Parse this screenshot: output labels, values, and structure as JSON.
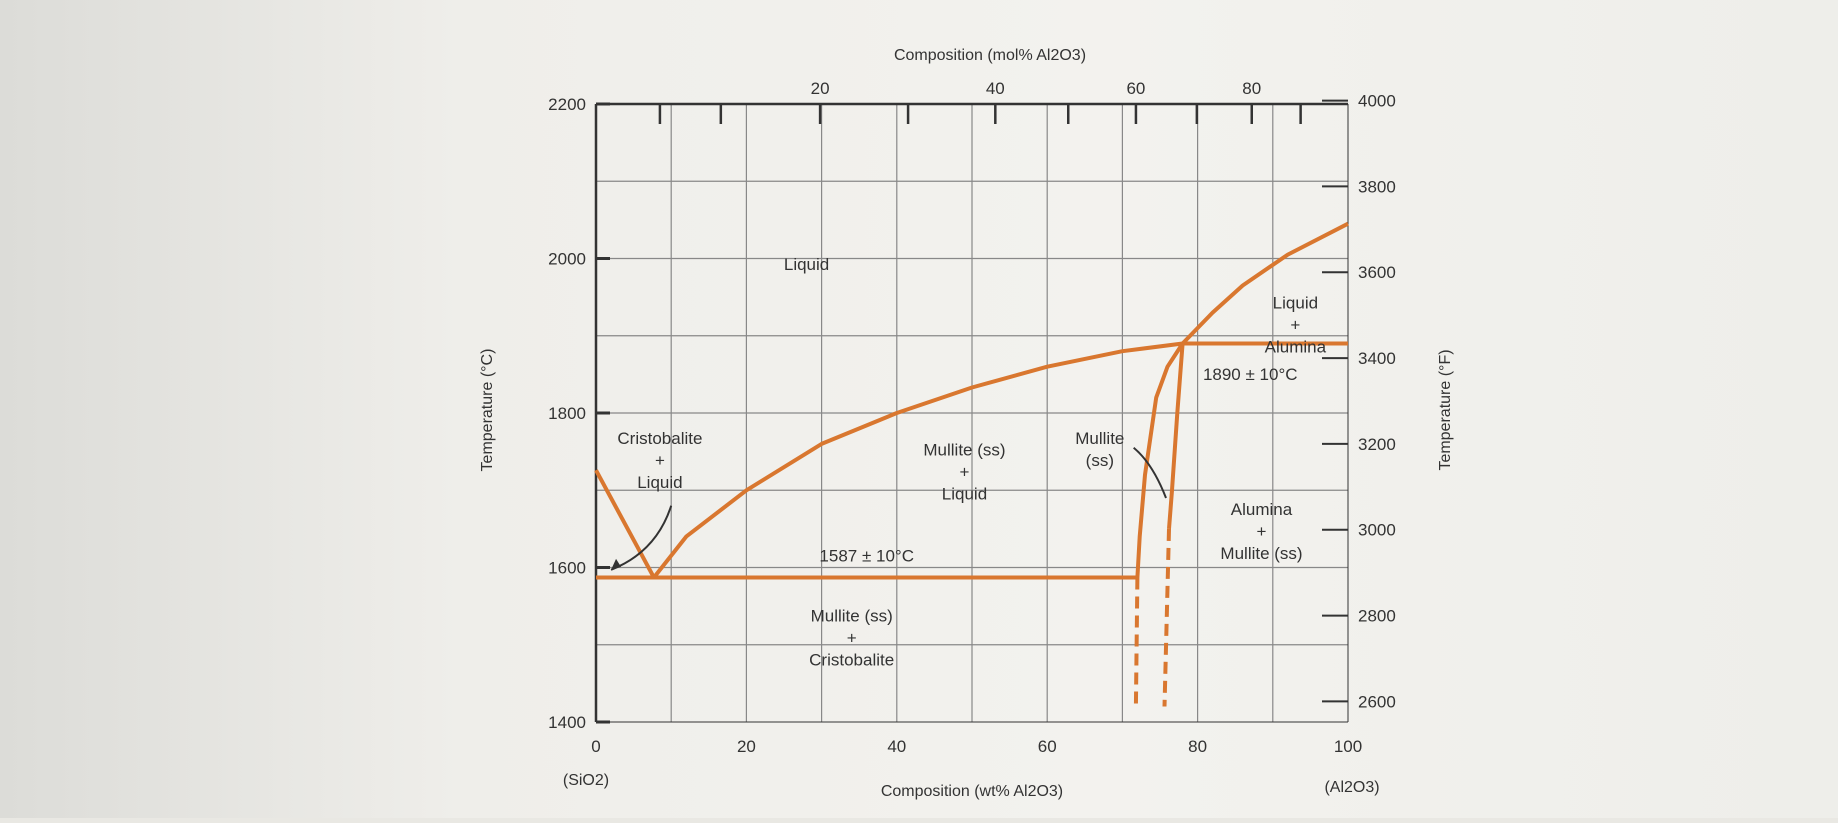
{
  "chart_data": {
    "type": "line",
    "title": "",
    "xlabel": "Composition (wt% Al2O3)",
    "x2label": "Composition (mol% Al2O3)",
    "ylabel": "Temperature (°C)",
    "y2label": "Temperature (°F)",
    "xlim": [
      0,
      100
    ],
    "ylim": [
      1400,
      2200
    ],
    "grid": true,
    "x_ticks": [
      0,
      20,
      40,
      60,
      80,
      100
    ],
    "x_minor_grid_step": 10,
    "y_ticks": [
      1400,
      1600,
      1800,
      2000,
      2200
    ],
    "y_grid_step": 100,
    "x2_ticks": [
      "20",
      "40",
      "60",
      "80"
    ],
    "x2_tick_values_wt": [
      29.8,
      53.1,
      71.8,
      87.2
    ],
    "y2_ticks": [
      2600,
      2800,
      3000,
      3200,
      3400,
      3600,
      3800,
      4000
    ],
    "x_end_labels": {
      "left": "(SiO2)",
      "right": "(Al2O3)"
    },
    "line_color": "#d9772f",
    "series": [
      {
        "points": [
          [
            0,
            1726
          ],
          [
            7.7,
            1587
          ]
        ]
      },
      {
        "points": [
          [
            7.7,
            1587
          ],
          [
            12,
            1640
          ],
          [
            20,
            1700
          ],
          [
            30,
            1760
          ],
          [
            40,
            1800
          ],
          [
            50,
            1833
          ],
          [
            60,
            1860
          ],
          [
            70,
            1880
          ],
          [
            78,
            1890
          ]
        ]
      },
      {
        "points": [
          [
            0,
            1587
          ],
          [
            72,
            1587
          ]
        ]
      },
      {
        "points": [
          [
            72,
            1587
          ],
          [
            72.3,
            1640
          ],
          [
            73,
            1720
          ],
          [
            74.5,
            1820
          ],
          [
            76,
            1860
          ],
          [
            78,
            1890
          ]
        ]
      },
      {
        "points": [
          [
            78,
            1890
          ],
          [
            77.3,
            1800
          ],
          [
            76.6,
            1700
          ],
          [
            76.2,
            1650
          ]
        ]
      },
      {
        "points": [
          [
            78,
            1890
          ],
          [
            82,
            1930
          ],
          [
            86,
            1965
          ],
          [
            92,
            2005
          ],
          [
            100,
            2045
          ]
        ]
      },
      {
        "points": [
          [
            78,
            1890
          ],
          [
            100,
            1890
          ]
        ]
      },
      {
        "dashed": true,
        "points": [
          [
            72,
            1587
          ],
          [
            71.8,
            1420
          ]
        ]
      },
      {
        "dashed": true,
        "points": [
          [
            76.2,
            1650
          ],
          [
            75.6,
            1420
          ]
        ]
      }
    ],
    "annotations": {
      "liquid": "Liquid",
      "cristobalite_liquid": [
        "Cristobalite",
        "+",
        "Liquid"
      ],
      "mullite_liquid": [
        "Mullite (ss)",
        "+",
        "Liquid"
      ],
      "mullite_ss": [
        "Mullite",
        "(ss)"
      ],
      "liquid_alumina": [
        "Liquid",
        "+",
        "Alumina"
      ],
      "peritectic": "1890 ± 10°C",
      "eutectic": "1587 ± 10°C",
      "alumina_mullite": [
        "Alumina",
        "+",
        "Mullite (ss)"
      ],
      "mullite_cristobalite": [
        "Mullite (ss)",
        "+",
        "Cristobalite"
      ]
    }
  }
}
